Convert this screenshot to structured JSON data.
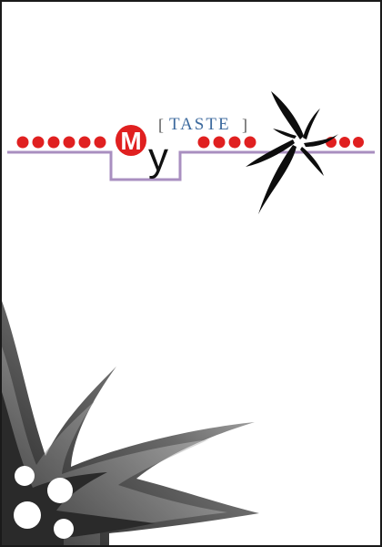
{
  "logo": {
    "m_letter": "M",
    "y_letter": "y",
    "bracket_open": "[",
    "taste_word": "TASTE",
    "bracket_close": "]"
  },
  "colors": {
    "border": "#1a1a1a",
    "dot_red": "#e02020",
    "rule_purple": "#a98fc0",
    "taste_blue": "#3d6a9e",
    "bracket_gray": "#555555",
    "star_black": "#0d0d0d",
    "burst_dark": "#3a3a3a",
    "burst_light": "#d9d9d9"
  },
  "decorations": {
    "left_dot_count": 6,
    "middle_dot_count": 4,
    "right_dot_count": 3,
    "star_icon": "four-point-star-icon",
    "burst_icon": "corner-burst-icon"
  }
}
